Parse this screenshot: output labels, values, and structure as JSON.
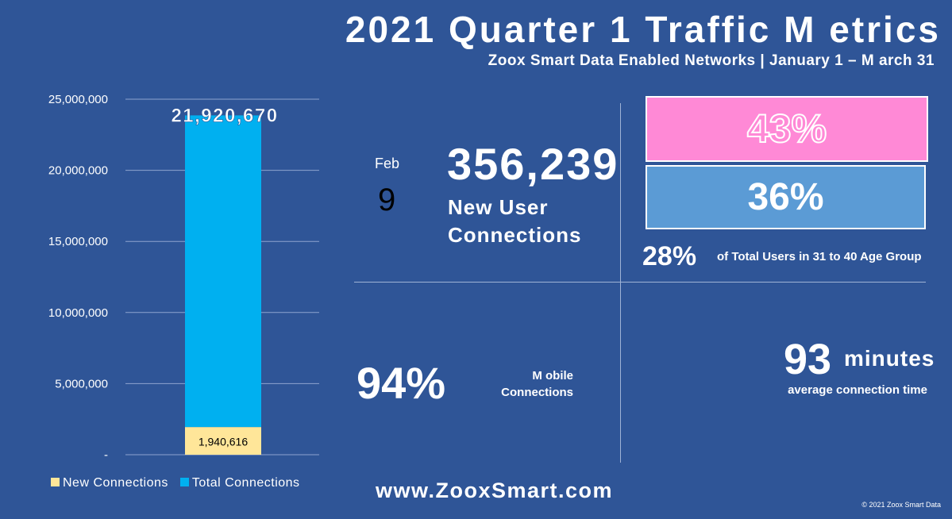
{
  "header": {
    "title": "2021 Quarter 1 Traffic M etrics",
    "subtitle": "Zoox Smart Data Enabled Networks |   January 1 – M arch 31"
  },
  "chart_data": {
    "type": "bar",
    "stacked": true,
    "categories": [
      ""
    ],
    "series": [
      {
        "name": "New Connections",
        "values": [
          1940616
        ],
        "color": "#ffe699"
      },
      {
        "name": "Total Connections",
        "values": [
          21920670
        ],
        "color": "#00b0f0"
      }
    ],
    "data_labels": [
      "1,940,616",
      "21,920,670"
    ],
    "yticks": [
      "-",
      "5,000,000",
      "10,000,000",
      "15,000,000",
      "20,000,000",
      "25,000,000"
    ],
    "ylim": [
      0,
      25000000
    ],
    "grid": true,
    "legend_position": "bottom"
  },
  "metrics": {
    "date_month": "Feb",
    "date_day": "9",
    "new_users_value": "356,239",
    "new_users_label_1": "New User",
    "new_users_label_2": "Connections",
    "pct_pink": "43%",
    "pct_blue": "36%",
    "pct_age": "28%",
    "age_label": "of Total Users in 31 to 40 Age Group",
    "mobile_pct": "94%",
    "mobile_label_1": "M obile",
    "mobile_label_2": "Connections",
    "minutes_value": "93",
    "minutes_unit": "minutes",
    "minutes_label": "average connection time"
  },
  "footer": {
    "website": "www.ZooxSmart.com",
    "copyright": "© 2021 Zoox Smart Data"
  },
  "colors": {
    "background": "#2f5597",
    "pink_box": "#ff89d6",
    "blue_box": "#5b9bd5"
  }
}
